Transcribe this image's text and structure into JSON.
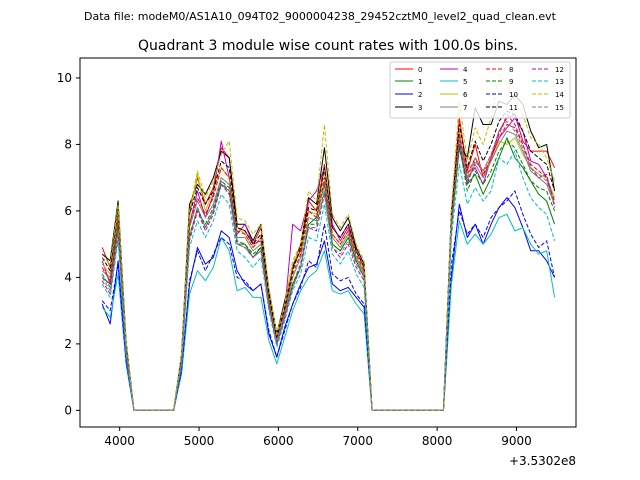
{
  "header": {
    "data_file": "Data file: modeM0/AS1A10_094T02_9000004238_29452cztM0_level2_quad_clean.evt",
    "title": "Quadrant 3 module wise count rates with 100.0s bins."
  },
  "chart_data": {
    "type": "line",
    "title": "Quadrant 3 module wise count rates with 100.0s bins.",
    "xlabel": "",
    "ylabel": "",
    "x_offset_label": "+3.5302e8",
    "xlim": [
      3500,
      9750
    ],
    "ylim": [
      -0.5,
      10.6
    ],
    "x_ticks": [
      4000,
      5000,
      6000,
      7000,
      8000,
      9000
    ],
    "x_tick_labels": [
      "4000",
      "5000",
      "6000",
      "7000",
      "8000",
      "9000"
    ],
    "y_ticks": [
      0,
      2,
      4,
      6,
      8,
      10
    ],
    "y_tick_labels": [
      "0",
      "2",
      "4",
      "6",
      "8",
      "10"
    ],
    "grid": false,
    "legend_position": "top-right",
    "x": [
      3780,
      3880,
      3980,
      4080,
      4180,
      4280,
      4380,
      4480,
      4580,
      4680,
      4780,
      4880,
      4980,
      5080,
      5180,
      5280,
      5380,
      5480,
      5580,
      5680,
      5780,
      5880,
      5980,
      6080,
      6180,
      6280,
      6380,
      6480,
      6580,
      6680,
      6780,
      6880,
      6980,
      7080,
      7180,
      7280,
      7380,
      7480,
      7580,
      7680,
      7780,
      7880,
      7980,
      8080,
      8180,
      8280,
      8380,
      8480,
      8580,
      8680,
      8780,
      8880,
      8980,
      9080,
      9180,
      9280,
      9380,
      9480
    ],
    "series": [
      {
        "name": "0",
        "color": "#ff0000",
        "dash": false,
        "values": [
          4.9,
          4.3,
          6.0,
          2.0,
          0,
          0,
          0,
          0,
          0,
          0,
          1.6,
          6.0,
          7.0,
          6.2,
          6.7,
          7.9,
          7.6,
          5.5,
          5.4,
          5.0,
          5.5,
          3.6,
          2.3,
          3.0,
          4.3,
          4.8,
          6.3,
          6.0,
          7.4,
          5.5,
          5.2,
          5.6,
          4.8,
          4.3,
          0,
          0,
          0,
          0,
          0,
          0,
          0,
          0,
          0,
          0,
          5.9,
          8.8,
          7.2,
          8.0,
          7.0,
          7.6,
          8.4,
          8.8,
          8.9,
          8.1,
          7.8,
          7.8,
          7.8,
          7.3
        ]
      },
      {
        "name": "1",
        "color": "#008000",
        "dash": false,
        "values": [
          4.0,
          3.8,
          5.6,
          1.8,
          0,
          0,
          0,
          0,
          0,
          0,
          1.5,
          5.2,
          6.1,
          5.5,
          6.0,
          6.8,
          6.6,
          5.0,
          5.0,
          4.6,
          4.9,
          3.2,
          2.0,
          2.8,
          3.8,
          4.3,
          5.6,
          5.8,
          6.8,
          5.0,
          4.8,
          5.2,
          4.5,
          4.0,
          0,
          0,
          0,
          0,
          0,
          0,
          0,
          0,
          0,
          0,
          5.5,
          7.9,
          6.8,
          7.1,
          6.5,
          7.0,
          7.6,
          8.2,
          7.6,
          7.3,
          6.9,
          6.5,
          6.3,
          5.6
        ]
      },
      {
        "name": "2",
        "color": "#0000ff",
        "dash": false,
        "values": [
          3.2,
          2.6,
          4.5,
          1.5,
          0,
          0,
          0,
          0,
          0,
          0,
          1.2,
          3.8,
          4.9,
          4.4,
          4.6,
          5.4,
          5.2,
          4.2,
          3.8,
          3.6,
          3.8,
          2.3,
          1.6,
          2.5,
          3.2,
          3.8,
          4.3,
          4.4,
          5.1,
          3.8,
          3.6,
          3.7,
          3.4,
          3.1,
          0,
          0,
          0,
          0,
          0,
          0,
          0,
          0,
          0,
          0,
          4.0,
          6.2,
          5.2,
          5.6,
          5.0,
          5.6,
          6.1,
          6.4,
          6.1,
          5.5,
          4.8,
          4.8,
          4.5,
          4.0
        ]
      },
      {
        "name": "3",
        "color": "#000000",
        "dash": false,
        "values": [
          4.7,
          4.5,
          6.3,
          2.1,
          0,
          0,
          0,
          0,
          0,
          0,
          1.7,
          6.2,
          6.8,
          6.5,
          7.0,
          7.8,
          7.6,
          5.6,
          5.6,
          5.1,
          5.6,
          3.6,
          2.3,
          3.3,
          4.3,
          5.0,
          6.4,
          6.2,
          7.9,
          5.8,
          5.4,
          5.8,
          4.9,
          4.4,
          0,
          0,
          0,
          0,
          0,
          0,
          0,
          0,
          0,
          0,
          6.0,
          8.0,
          7.6,
          9.1,
          8.6,
          8.6,
          9.3,
          9.2,
          9.5,
          9.2,
          8.4,
          7.9,
          8.0,
          6.6
        ]
      },
      {
        "name": "4",
        "color": "#bf00bf",
        "dash": false,
        "values": [
          4.5,
          3.8,
          5.9,
          1.9,
          0,
          0,
          0,
          0,
          0,
          0,
          1.6,
          5.6,
          6.6,
          5.8,
          6.5,
          8.1,
          7.0,
          5.3,
          5.6,
          5.0,
          5.1,
          3.5,
          2.2,
          3.0,
          5.6,
          5.4,
          6.3,
          6.6,
          7.3,
          5.6,
          5.1,
          5.5,
          4.6,
          4.1,
          0,
          0,
          0,
          0,
          0,
          0,
          0,
          0,
          0,
          0,
          5.7,
          8.4,
          7.0,
          7.3,
          6.8,
          7.6,
          8.2,
          8.5,
          8.8,
          8.4,
          7.5,
          7.4,
          7.0,
          6.2
        ]
      },
      {
        "name": "5",
        "color": "#00bfbf",
        "dash": false,
        "values": [
          3.1,
          2.8,
          4.1,
          1.4,
          0,
          0,
          0,
          0,
          0,
          0,
          1.1,
          3.5,
          4.2,
          3.9,
          4.3,
          5.2,
          4.8,
          3.6,
          3.7,
          3.4,
          3.4,
          2.1,
          1.4,
          2.2,
          3.0,
          3.6,
          4.0,
          4.2,
          4.8,
          3.6,
          3.5,
          3.6,
          3.2,
          2.9,
          0,
          0,
          0,
          0,
          0,
          0,
          0,
          0,
          0,
          0,
          3.8,
          5.7,
          5.0,
          5.3,
          5.0,
          5.3,
          5.8,
          5.9,
          5.4,
          5.5,
          5.0,
          4.7,
          4.8,
          3.4
        ]
      },
      {
        "name": "6",
        "color": "#bfbf00",
        "dash": false,
        "values": [
          4.4,
          4.1,
          6.1,
          2.0,
          0,
          0,
          0,
          0,
          0,
          0,
          1.6,
          5.8,
          7.1,
          6.0,
          6.6,
          7.3,
          7.0,
          5.5,
          5.3,
          4.9,
          5.2,
          3.5,
          2.2,
          3.1,
          4.4,
          4.9,
          6.0,
          5.9,
          7.2,
          5.3,
          5.0,
          5.4,
          4.6,
          4.2,
          0,
          0,
          0,
          0,
          0,
          0,
          0,
          0,
          0,
          0,
          5.8,
          8.4,
          6.9,
          7.6,
          7.2,
          7.5,
          8.1,
          8.0,
          8.2,
          7.7,
          7.3,
          7.1,
          7.0,
          6.4
        ]
      },
      {
        "name": "7",
        "color": "#808080",
        "dash": false,
        "values": [
          4.2,
          4.0,
          5.8,
          1.9,
          0,
          0,
          0,
          0,
          0,
          0,
          1.5,
          5.5,
          6.3,
          5.8,
          6.2,
          7.0,
          6.8,
          5.2,
          5.2,
          4.8,
          5.0,
          3.3,
          2.1,
          2.9,
          4.0,
          4.6,
          5.8,
          5.7,
          6.9,
          5.2,
          4.9,
          5.3,
          4.6,
          4.1,
          0,
          0,
          0,
          0,
          0,
          0,
          0,
          0,
          0,
          0,
          5.7,
          8.2,
          6.9,
          7.4,
          7.0,
          7.5,
          8.0,
          8.4,
          8.3,
          7.8,
          7.2,
          7.0,
          6.8,
          6.2
        ]
      },
      {
        "name": "8",
        "color": "#ff0000",
        "dash": true,
        "values": [
          4.3,
          3.9,
          5.7,
          1.9,
          0,
          0,
          0,
          0,
          0,
          0,
          1.5,
          5.6,
          6.4,
          5.9,
          6.4,
          7.3,
          7.0,
          5.4,
          5.3,
          4.9,
          5.2,
          3.4,
          2.2,
          3.0,
          4.1,
          4.7,
          6.0,
          5.8,
          7.0,
          5.3,
          5.0,
          5.4,
          4.7,
          4.2,
          0,
          0,
          0,
          0,
          0,
          0,
          0,
          0,
          0,
          0,
          5.8,
          8.3,
          7.1,
          7.6,
          7.1,
          7.6,
          8.2,
          8.6,
          8.5,
          8.0,
          7.4,
          7.2,
          7.0,
          6.3
        ]
      },
      {
        "name": "9",
        "color": "#008000",
        "dash": true,
        "values": [
          4.1,
          3.7,
          5.5,
          1.8,
          0,
          0,
          0,
          0,
          0,
          0,
          1.5,
          5.3,
          6.0,
          5.6,
          6.1,
          6.9,
          6.7,
          5.1,
          5.0,
          4.7,
          4.9,
          3.2,
          2.0,
          2.8,
          3.8,
          4.4,
          5.6,
          5.6,
          6.6,
          5.0,
          4.8,
          5.2,
          4.5,
          4.0,
          0,
          0,
          0,
          0,
          0,
          0,
          0,
          0,
          0,
          0,
          5.5,
          8.0,
          6.6,
          7.2,
          6.8,
          7.2,
          7.8,
          8.1,
          7.9,
          7.4,
          6.9,
          6.7,
          6.6,
          6.0
        ]
      },
      {
        "name": "10",
        "color": "#0000ff",
        "dash": true,
        "values": [
          3.3,
          3.0,
          4.4,
          1.5,
          0,
          0,
          0,
          0,
          0,
          0,
          1.2,
          3.9,
          4.8,
          4.2,
          4.7,
          5.2,
          5.0,
          4.0,
          3.9,
          3.6,
          3.8,
          2.4,
          1.6,
          2.4,
          3.2,
          3.7,
          4.5,
          4.3,
          5.6,
          4.1,
          3.9,
          4.0,
          3.5,
          3.2,
          0,
          0,
          0,
          0,
          0,
          0,
          0,
          0,
          0,
          0,
          4.4,
          6.0,
          5.3,
          5.6,
          5.2,
          5.8,
          6.1,
          6.3,
          6.6,
          5.9,
          5.3,
          4.9,
          5.1,
          4.0
        ]
      },
      {
        "name": "11",
        "color": "#000000",
        "dash": true,
        "values": [
          4.6,
          4.2,
          6.1,
          2.0,
          0,
          0,
          0,
          0,
          0,
          0,
          1.6,
          5.9,
          6.7,
          6.2,
          6.6,
          7.5,
          7.3,
          5.5,
          5.4,
          5.0,
          5.3,
          3.5,
          2.2,
          3.1,
          4.2,
          4.9,
          6.1,
          6.0,
          7.3,
          5.5,
          5.2,
          5.6,
          4.8,
          4.3,
          0,
          0,
          0,
          0,
          0,
          0,
          0,
          0,
          0,
          0,
          5.9,
          8.6,
          7.3,
          8.1,
          7.5,
          8.0,
          8.7,
          9.0,
          8.9,
          8.4,
          7.8,
          7.6,
          7.4,
          6.6
        ]
      },
      {
        "name": "12",
        "color": "#bf00bf",
        "dash": true,
        "values": [
          3.9,
          3.5,
          5.3,
          1.7,
          0,
          0,
          0,
          0,
          0,
          0,
          1.4,
          5.1,
          6.0,
          5.4,
          5.9,
          6.8,
          6.5,
          5.0,
          4.9,
          4.6,
          4.8,
          3.1,
          2.0,
          2.8,
          3.7,
          4.3,
          5.5,
          5.4,
          6.5,
          4.9,
          4.6,
          5.0,
          4.3,
          3.9,
          0,
          0,
          0,
          0,
          0,
          0,
          0,
          0,
          0,
          0,
          5.6,
          8.1,
          6.8,
          7.5,
          7.2,
          7.7,
          8.3,
          8.9,
          8.6,
          8.0,
          7.3,
          7.0,
          7.1,
          6.1
        ]
      },
      {
        "name": "13",
        "color": "#00bfbf",
        "dash": true,
        "values": [
          3.8,
          3.4,
          5.1,
          1.7,
          0,
          0,
          0,
          0,
          0,
          0,
          1.4,
          4.9,
          5.7,
          5.2,
          5.7,
          6.5,
          6.2,
          4.8,
          4.6,
          4.3,
          4.6,
          3.0,
          1.9,
          2.7,
          3.6,
          4.1,
          5.2,
          5.1,
          6.2,
          4.7,
          4.4,
          4.8,
          4.1,
          3.7,
          0,
          0,
          0,
          0,
          0,
          0,
          0,
          0,
          0,
          0,
          5.2,
          7.4,
          6.2,
          6.7,
          6.3,
          6.6,
          7.6,
          7.4,
          7.8,
          7.0,
          6.4,
          6.1,
          5.9,
          5.1
        ]
      },
      {
        "name": "14",
        "color": "#bfbf00",
        "dash": true,
        "values": [
          4.6,
          4.4,
          6.2,
          2.1,
          0,
          0,
          0,
          0,
          0,
          0,
          1.7,
          6.0,
          7.2,
          6.4,
          6.9,
          7.7,
          8.1,
          5.8,
          5.7,
          5.3,
          5.6,
          3.7,
          2.3,
          3.2,
          4.5,
          5.0,
          6.6,
          6.3,
          8.6,
          5.9,
          5.5,
          5.9,
          5.0,
          4.5,
          0,
          0,
          0,
          0,
          0,
          0,
          0,
          0,
          0,
          0,
          6.1,
          9.3,
          7.5,
          8.5,
          8.0,
          8.8,
          10.1,
          9.8,
          9.3,
          8.9,
          8.2,
          8.0,
          7.6,
          6.9
        ]
      },
      {
        "name": "15",
        "color": "#808080",
        "dash": true,
        "values": [
          4.0,
          3.6,
          5.4,
          1.8,
          0,
          0,
          0,
          0,
          0,
          0,
          1.4,
          5.2,
          6.1,
          5.5,
          6.0,
          6.9,
          6.6,
          5.0,
          4.9,
          4.6,
          4.8,
          3.1,
          2.0,
          2.8,
          3.7,
          4.3,
          5.5,
          5.5,
          6.6,
          4.9,
          4.7,
          5.1,
          4.4,
          4.0,
          0,
          0,
          0,
          0,
          0,
          0,
          0,
          0,
          0,
          0,
          5.6,
          8.2,
          7.0,
          7.6,
          7.2,
          7.7,
          8.4,
          8.7,
          8.4,
          7.9,
          7.3,
          7.1,
          6.9,
          6.2
        ]
      }
    ]
  }
}
